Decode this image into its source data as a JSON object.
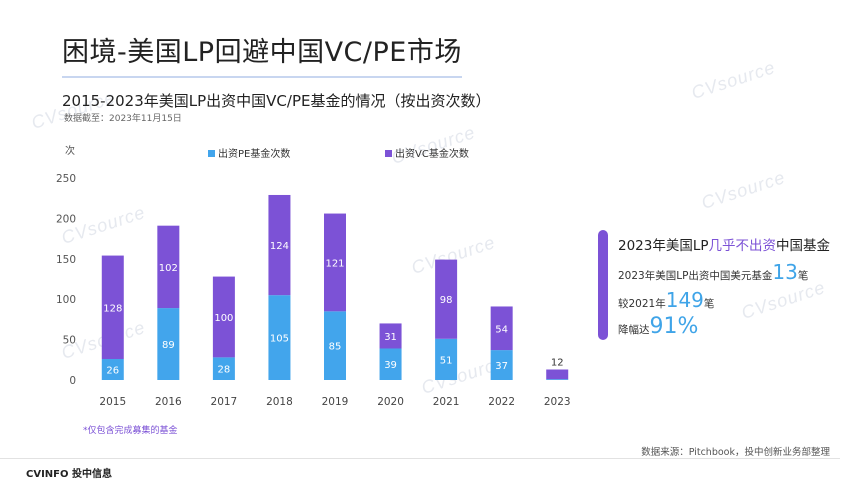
{
  "page": {
    "title": "困境-美国LP回避中国VC/PE市场",
    "subtitle": "2015-2023年美国LP出资中国VC/PE基金的情况（按出资次数）",
    "as_of": "数据截至：2023年11月15日",
    "note": "*仅包含完成募集的基金",
    "source": "数据来源：Pitchbook，投中创新业务部整理",
    "brand": "CVINFO 投中信息",
    "watermark": "CVsource"
  },
  "callout": {
    "title_pre": "2023年美国LP",
    "title_highlight": "几乎不出资",
    "title_post": "中国基金",
    "line1_text": "2023年美国LP出资中国美元基金",
    "line1_value": "13",
    "line1_unit": "笔",
    "line2_text": "较2021年",
    "line2_value": "149",
    "line2_unit": "笔",
    "line3_text": "降幅达",
    "line3_value": "91%"
  },
  "colors": {
    "pe": "#42a5ec",
    "vc": "#7c52d6",
    "accent": "#3fa4e8"
  },
  "chart_data": {
    "type": "bar",
    "stacked": true,
    "ylabel": "次",
    "ylim": [
      0,
      250
    ],
    "yticks": [
      0,
      50,
      100,
      150,
      200,
      250
    ],
    "grid": false,
    "legend_position": "top",
    "categories": [
      "2015",
      "2016",
      "2017",
      "2018",
      "2019",
      "2020",
      "2021",
      "2022",
      "2023"
    ],
    "series": [
      {
        "name": "出资PE基金次数",
        "values": [
          26,
          89,
          28,
          105,
          85,
          39,
          51,
          37,
          1
        ]
      },
      {
        "name": "出资VC基金次数",
        "values": [
          128,
          102,
          100,
          124,
          121,
          31,
          98,
          54,
          12
        ]
      }
    ]
  }
}
